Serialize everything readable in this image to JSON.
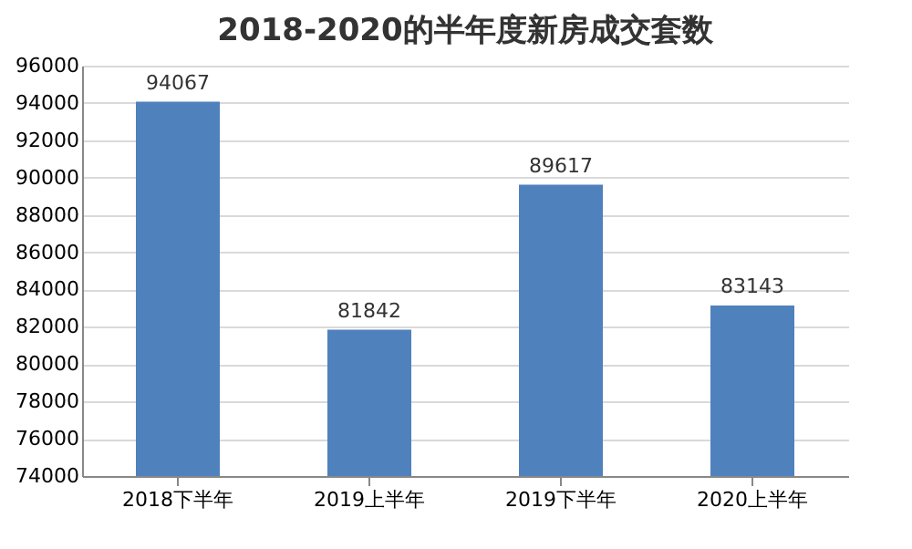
{
  "chart_data": {
    "type": "bar",
    "title": "2018-2020的半年度新房成交套数",
    "categories": [
      "2018下半年",
      "2019上半年",
      "2019下半年",
      "2020上半年"
    ],
    "values": [
      94067,
      81842,
      89617,
      83143
    ],
    "color": "#4f81bd",
    "ylim": [
      74000,
      96000
    ],
    "yticks": [
      74000,
      76000,
      78000,
      80000,
      82000,
      84000,
      86000,
      88000,
      90000,
      92000,
      94000,
      96000
    ],
    "grid": "y",
    "data_labels": true
  }
}
